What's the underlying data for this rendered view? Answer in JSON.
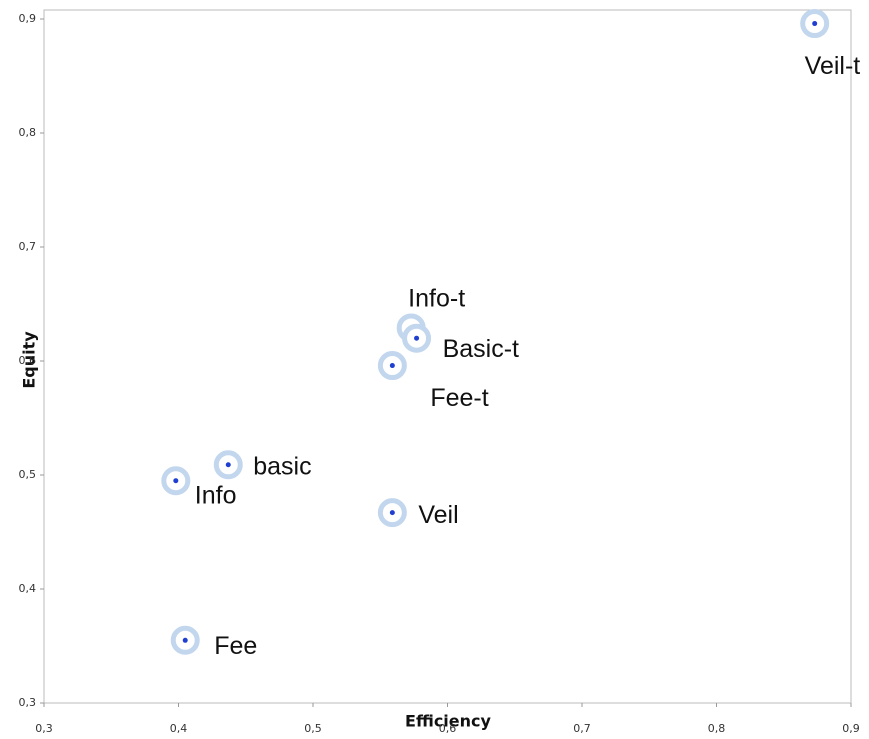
{
  "chart_data": {
    "type": "scatter",
    "x_label": "Efficiency",
    "y_label": "Equity",
    "series": [
      {
        "color": "#1f3fd0",
        "labels": [
          "Veil-t",
          "Info-t",
          "Basic-t",
          "Fee-t",
          "basic",
          "Info",
          "Veil",
          "Fee"
        ],
        "x": [
          0.873,
          0.573,
          0.577,
          0.559,
          0.437,
          0.398,
          0.559,
          0.405
        ],
        "values": [
          0.896,
          0.629,
          0.62,
          0.596,
          0.509,
          0.495,
          0.467,
          0.355
        ]
      }
    ],
    "xlim": [
      0.3,
      0.9
    ],
    "xticks": [
      {
        "value": 0.3,
        "label": "0,3"
      },
      {
        "value": 0.4,
        "label": "0,4"
      },
      {
        "value": 0.5,
        "label": "0,5"
      },
      {
        "value": 0.6,
        "label": "0,6"
      },
      {
        "value": 0.7,
        "label": "0,7"
      },
      {
        "value": 0.8,
        "label": "0,8"
      },
      {
        "value": 0.9,
        "label": "0,9"
      }
    ],
    "ylim": [
      0.3,
      0.9
    ],
    "yticks": [
      {
        "value": 0.3,
        "label": "0,3"
      },
      {
        "value": 0.4,
        "label": "0,4"
      },
      {
        "value": 0.5,
        "label": "0,5"
      },
      {
        "value": 0.6,
        "label": "0,6"
      },
      {
        "value": 0.7,
        "label": "0,7"
      },
      {
        "value": 0.8,
        "label": "0,8"
      },
      {
        "value": 0.9,
        "label": "0,9"
      }
    ],
    "grid": false
  }
}
